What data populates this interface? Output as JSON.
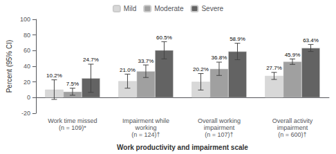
{
  "chart_data": {
    "type": "bar",
    "categories": [
      "Work time missed\n(n = 109)*",
      "Impairment while\nworking\n(n = 124)†",
      "Overall working\nimpairment\n(n = 107)†",
      "Overall activity\nimpairment\n(n = 600)†"
    ],
    "series": [
      {
        "name": "Mild",
        "color": "#d8d8d8",
        "values": [
          10.2,
          21.0,
          20.2,
          27.7
        ],
        "errors": [
          12.5,
          9.0,
          10.5,
          4.5
        ],
        "value_labels": [
          "10.2%",
          "21.0%",
          "20.2%",
          "27.7%"
        ]
      },
      {
        "name": "Moderate",
        "color": "#a0a0a0",
        "values": [
          7.5,
          33.7,
          36.8,
          45.9
        ],
        "errors": [
          4.5,
          8.0,
          8.5,
          3.5
        ],
        "value_labels": [
          "7.5%",
          "33.7%",
          "36.8%",
          "45.9%"
        ]
      },
      {
        "name": "Severe",
        "color": "#636363",
        "values": [
          24.7,
          60.5,
          58.9,
          63.4
        ],
        "errors": [
          18.0,
          11.0,
          10.5,
          4.5
        ],
        "value_labels": [
          "24.7%",
          "60.5%",
          "58.9%",
          "63.4%"
        ]
      }
    ],
    "ylabel": "Percent (95% CI)",
    "xlabel": "Work productivity and impairment scale",
    "ylim": [
      -20,
      100
    ],
    "yticks": [
      -20,
      0,
      20,
      40,
      60,
      80,
      100
    ],
    "grid": false,
    "legend": "top",
    "data_labels": true
  }
}
